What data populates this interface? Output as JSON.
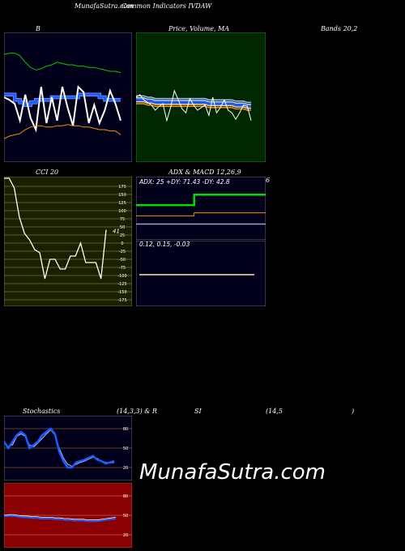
{
  "header": {
    "brand": "MunafaSutra.com",
    "subtitle": "Common Indicators IVDAW"
  },
  "panels": {
    "bollinger": {
      "label": "B",
      "label2": "Bands 20,2"
    },
    "price_ma": {
      "label": "Price, Volume, MA"
    },
    "cci": {
      "label": "CCI 20",
      "value_label": "41"
    },
    "adx_macd": {
      "label": "ADX & MACD 12,26,9",
      "adx_text": "ADX: 25 +DY: 71.43 -DY: 42.8",
      "macd_text": "0.12, 0.15, -0.03",
      "stray": "6"
    },
    "stoch": {
      "label": "Stochastics",
      "params": "(14,3,3) & R",
      "rsi_label": "SI",
      "rsi_params": "(14,5",
      "rsi_close": ")"
    }
  },
  "watermark": "MunafaSutra.com",
  "colors": {
    "bg": "#000000",
    "navy": "#00001a",
    "green_panel": "#002800",
    "olive": "#1a1f00",
    "red_panel": "#8b0000",
    "blue": "#1a5cff",
    "green_line": "#00cc00",
    "orange": "#ff8c00",
    "white": "#ffffff"
  },
  "chart_data": [
    {
      "type": "line",
      "name": "bollinger",
      "series": [
        {
          "name": "upper",
          "values": [
            83,
            84,
            84,
            82,
            77,
            73,
            71,
            72,
            74,
            75,
            77,
            76,
            75,
            75,
            74,
            74,
            73,
            73,
            72,
            71,
            70,
            70,
            69
          ]
        },
        {
          "name": "mid",
          "values": [
            52,
            52,
            48,
            46,
            44,
            46,
            48,
            48,
            48,
            50,
            50,
            50,
            50,
            50,
            52,
            52,
            52,
            52,
            50,
            48,
            48,
            48,
            48
          ]
        },
        {
          "name": "price",
          "values": [
            50,
            48,
            45,
            32,
            52,
            34,
            25,
            58,
            30,
            50,
            32,
            58,
            42,
            28,
            58,
            54,
            30,
            44,
            30,
            40,
            55,
            45,
            32
          ]
        },
        {
          "name": "lower",
          "values": [
            18,
            20,
            21,
            22,
            25,
            27,
            28,
            28,
            27,
            27,
            28,
            28,
            29,
            28,
            28,
            27,
            27,
            26,
            25,
            25,
            24,
            24,
            21
          ]
        }
      ]
    },
    {
      "type": "line",
      "name": "price-ma",
      "series": [
        {
          "name": "price",
          "values": [
            50,
            52,
            48,
            46,
            44,
            40,
            43,
            45,
            32,
            42,
            55,
            48,
            41,
            38,
            49,
            44,
            40,
            42,
            44,
            36,
            50,
            38,
            42,
            48,
            40,
            38,
            33,
            38,
            44,
            43,
            32
          ]
        },
        {
          "name": "ma-blue",
          "values": [
            48,
            48,
            48,
            47,
            47,
            46,
            46,
            46,
            46,
            46,
            46,
            46,
            46,
            46,
            46,
            46,
            46,
            46,
            46,
            45,
            45,
            45,
            45,
            45,
            45,
            45,
            44,
            44,
            44,
            43,
            43
          ]
        }
      ]
    },
    {
      "type": "line",
      "name": "cci",
      "ticks": [
        175,
        150,
        125,
        100,
        75,
        50,
        25,
        0,
        -25,
        -50,
        -75,
        -100,
        -125,
        -150,
        -175
      ],
      "values": [
        200,
        200,
        170,
        80,
        30,
        10,
        -20,
        -30,
        -110,
        -50,
        -50,
        -80,
        -80,
        -40,
        -40,
        0,
        -60,
        -60,
        -60,
        -110,
        41
      ],
      "last_label": "41"
    },
    {
      "type": "line",
      "name": "adx",
      "series": [
        {
          "name": "+DY",
          "values": [
            55,
            55,
            55,
            55,
            55,
            55,
            55,
            55,
            55,
            55,
            55,
            55,
            55,
            71.43,
            71.43,
            71.43,
            71.43,
            71.43,
            71.43,
            71.43,
            71.43,
            71.43,
            71.43,
            71.43,
            71.43,
            71.43,
            71.43,
            71.43,
            71.43,
            71.43
          ]
        },
        {
          "name": "-DY",
          "values": [
            38,
            38,
            38,
            38,
            38,
            38,
            38,
            38,
            38,
            38,
            38,
            38,
            38,
            42.8,
            42.8,
            42.8,
            42.8,
            42.8,
            42.8,
            42.8,
            42.8,
            42.8,
            42.8,
            42.8,
            42.8,
            42.8,
            42.8,
            42.8,
            42.8,
            42.8
          ]
        },
        {
          "name": "ADX",
          "values": [
            25,
            25,
            25,
            25,
            25,
            25,
            25,
            25,
            25,
            25,
            25,
            25,
            25,
            25,
            25,
            25,
            25,
            25,
            25,
            25,
            25,
            25,
            25,
            25,
            25,
            25,
            25,
            25,
            25,
            25
          ]
        }
      ]
    },
    {
      "type": "line",
      "name": "macd",
      "values": [
        0.12,
        0.15,
        -0.03
      ]
    },
    {
      "type": "line",
      "name": "stochastics",
      "ticks": [
        80,
        50,
        20
      ],
      "series": [
        {
          "name": "%K",
          "values": [
            60,
            50,
            60,
            70,
            75,
            70,
            50,
            55,
            60,
            70,
            75,
            80,
            72,
            45,
            30,
            20,
            20,
            28,
            30,
            32,
            35,
            38,
            32,
            30,
            26,
            28,
            30
          ]
        },
        {
          "name": "%D",
          "values": [
            58,
            52,
            55,
            68,
            72,
            68,
            55,
            52,
            58,
            65,
            72,
            78,
            70,
            50,
            35,
            25,
            22,
            25,
            28,
            30,
            33,
            36,
            34,
            30,
            28,
            27,
            28
          ]
        }
      ]
    },
    {
      "type": "line",
      "name": "rsi",
      "ticks": [
        80,
        50,
        20
      ],
      "series": [
        {
          "name": "rsi",
          "values": [
            48,
            49,
            49,
            48,
            47,
            47,
            46,
            46,
            45,
            45,
            45,
            44,
            44,
            43,
            43,
            42,
            42,
            42,
            41,
            41,
            41,
            42,
            43,
            44,
            45
          ]
        }
      ]
    }
  ]
}
